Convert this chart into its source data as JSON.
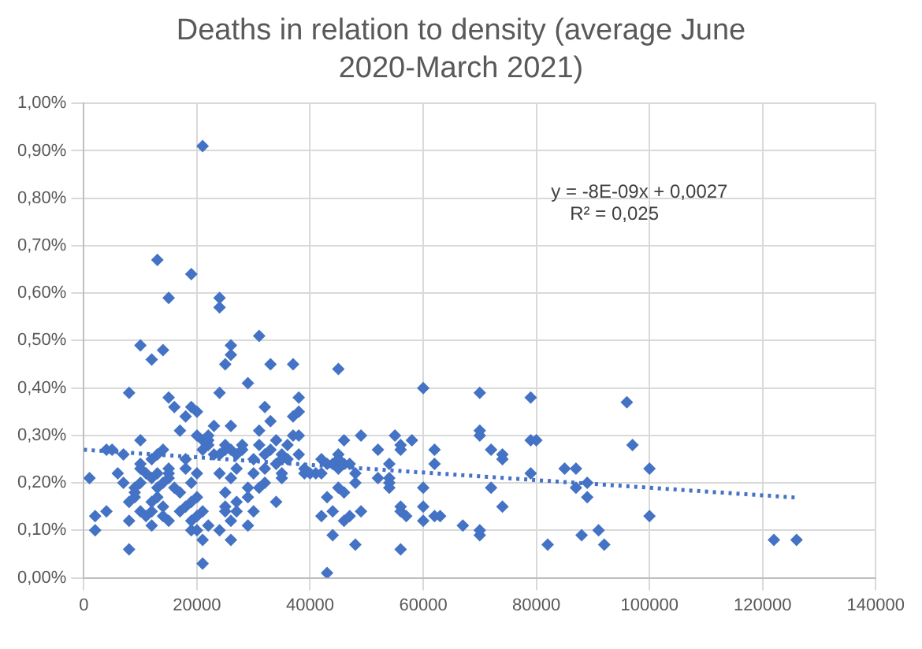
{
  "chart_data": {
    "type": "scatter",
    "title": "Deaths in relation to density (average June 2020-March 2021)",
    "series": [
      {
        "color": "#4472c4",
        "x": [
          1000,
          2000,
          2000,
          4000,
          4000,
          5000,
          6000,
          7000,
          7000,
          8000,
          8000,
          8000,
          8000,
          9000,
          9000,
          9000,
          10000,
          10000,
          10000,
          10000,
          10000,
          10000,
          11000,
          11000,
          12000,
          12000,
          12000,
          12000,
          12000,
          12000,
          13000,
          13000,
          13000,
          13000,
          13000,
          14000,
          14000,
          14000,
          14000,
          14000,
          15000,
          15000,
          15000,
          15000,
          15000,
          15000,
          16000,
          16000,
          17000,
          17000,
          17000,
          18000,
          18000,
          18000,
          18000,
          19000,
          19000,
          19000,
          19000,
          19000,
          19000,
          20000,
          20000,
          20000,
          20000,
          20000,
          20000,
          21000,
          21000,
          21000,
          21000,
          21000,
          21000,
          22000,
          22000,
          22000,
          22000,
          23000,
          23000,
          24000,
          24000,
          24000,
          24000,
          24000,
          24000,
          25000,
          25000,
          25000,
          25000,
          25000,
          25000,
          26000,
          26000,
          26000,
          26000,
          26000,
          26000,
          26000,
          27000,
          27000,
          27000,
          27000,
          28000,
          28000,
          29000,
          29000,
          29000,
          29000,
          30000,
          30000,
          30000,
          31000,
          31000,
          31000,
          31000,
          32000,
          32000,
          32000,
          32000,
          33000,
          33000,
          33000,
          34000,
          34000,
          34000,
          35000,
          35000,
          35000,
          35000,
          36000,
          36000,
          37000,
          37000,
          37000,
          38000,
          38000,
          38000,
          38000,
          39000,
          39000,
          40000,
          41000,
          42000,
          42000,
          42000,
          43000,
          43000,
          43000,
          44000,
          44000,
          44000,
          45000,
          45000,
          45000,
          45000,
          45000,
          46000,
          46000,
          46000,
          46000,
          47000,
          47000,
          48000,
          48000,
          48000,
          49000,
          49000,
          52000,
          52000,
          54000,
          54000,
          54000,
          54000,
          55000,
          56000,
          56000,
          56000,
          56000,
          56000,
          57000,
          58000,
          60000,
          60000,
          60000,
          60000,
          62000,
          62000,
          62000,
          63000,
          67000,
          70000,
          70000,
          70000,
          70000,
          70000,
          72000,
          72000,
          74000,
          74000,
          74000,
          79000,
          79000,
          79000,
          80000,
          82000,
          85000,
          87000,
          87000,
          88000,
          89000,
          89000,
          91000,
          92000,
          96000,
          97000,
          100000,
          100000,
          122000,
          126000
        ],
        "values": [
          0.21,
          0.13,
          0.1,
          0.14,
          0.27,
          0.27,
          0.22,
          0.2,
          0.26,
          0.12,
          0.06,
          0.39,
          0.16,
          0.19,
          0.18,
          0.17,
          0.23,
          0.24,
          0.29,
          0.49,
          0.2,
          0.14,
          0.22,
          0.13,
          0.46,
          0.21,
          0.25,
          0.16,
          0.11,
          0.14,
          0.67,
          0.22,
          0.17,
          0.26,
          0.19,
          0.48,
          0.27,
          0.2,
          0.13,
          0.15,
          0.59,
          0.38,
          0.22,
          0.23,
          0.21,
          0.12,
          0.19,
          0.36,
          0.18,
          0.31,
          0.14,
          0.23,
          0.34,
          0.25,
          0.15,
          0.64,
          0.36,
          0.1,
          0.12,
          0.2,
          0.16,
          0.35,
          0.3,
          0.22,
          0.17,
          0.13,
          0.1,
          0.91,
          0.29,
          0.27,
          0.14,
          0.03,
          0.08,
          0.28,
          0.29,
          0.3,
          0.11,
          0.32,
          0.26,
          0.59,
          0.57,
          0.26,
          0.22,
          0.39,
          0.1,
          0.45,
          0.28,
          0.27,
          0.18,
          0.15,
          0.14,
          0.47,
          0.49,
          0.21,
          0.27,
          0.12,
          0.08,
          0.32,
          0.26,
          0.23,
          0.16,
          0.14,
          0.27,
          0.28,
          0.41,
          0.19,
          0.11,
          0.17,
          0.25,
          0.22,
          0.14,
          0.51,
          0.31,
          0.28,
          0.19,
          0.36,
          0.26,
          0.23,
          0.2,
          0.45,
          0.27,
          0.33,
          0.24,
          0.29,
          0.16,
          0.26,
          0.21,
          0.25,
          0.22,
          0.25,
          0.28,
          0.45,
          0.34,
          0.3,
          0.38,
          0.35,
          0.3,
          0.26,
          0.23,
          0.22,
          0.22,
          0.22,
          0.22,
          0.25,
          0.13,
          0.24,
          0.01,
          0.17,
          0.24,
          0.09,
          0.14,
          0.25,
          0.44,
          0.23,
          0.26,
          0.19,
          0.18,
          0.24,
          0.12,
          0.29,
          0.24,
          0.13,
          0.22,
          0.2,
          0.07,
          0.3,
          0.14,
          0.27,
          0.21,
          0.21,
          0.2,
          0.19,
          0.24,
          0.3,
          0.27,
          0.15,
          0.14,
          0.06,
          0.28,
          0.13,
          0.29,
          0.19,
          0.12,
          0.15,
          0.4,
          0.24,
          0.13,
          0.27,
          0.13,
          0.11,
          0.39,
          0.3,
          0.31,
          0.1,
          0.09,
          0.19,
          0.27,
          0.25,
          0.26,
          0.15,
          0.38,
          0.29,
          0.22,
          0.29,
          0.07,
          0.23,
          0.23,
          0.19,
          0.09,
          0.2,
          0.17,
          0.1,
          0.07,
          0.37,
          0.28,
          0.23,
          0.13,
          0.08,
          0.08
        ]
      },
      {
        "type": "line",
        "color": "#4472c4",
        "line_style": "dotted",
        "marker": "none",
        "x": [
          0,
          126000
        ],
        "values": [
          0.27,
          0.169
        ]
      }
    ],
    "marker": "diamond",
    "xlim": [
      0,
      140000
    ],
    "xticks": [
      0,
      20000,
      40000,
      60000,
      80000,
      100000,
      120000,
      140000
    ],
    "ylim": [
      0,
      1
    ],
    "yticks": [
      {
        "value": 0,
        "label": "0,00%"
      },
      {
        "value": 0.1,
        "label": "0,10%"
      },
      {
        "value": 0.2,
        "label": "0,20%"
      },
      {
        "value": 0.3,
        "label": "0,30%"
      },
      {
        "value": 0.4,
        "label": "0,40%"
      },
      {
        "value": 0.5,
        "label": "0,50%"
      },
      {
        "value": 0.6,
        "label": "0,60%"
      },
      {
        "value": 0.7,
        "label": "0,70%"
      },
      {
        "value": 0.8,
        "label": "0,80%"
      },
      {
        "value": 0.9,
        "label": "0,90%"
      },
      {
        "value": 1,
        "label": "1,00%"
      }
    ],
    "annotations": [
      "y = -8E-09x + 0,0027",
      "R² = 0,025"
    ],
    "grid": true,
    "legend": false
  }
}
